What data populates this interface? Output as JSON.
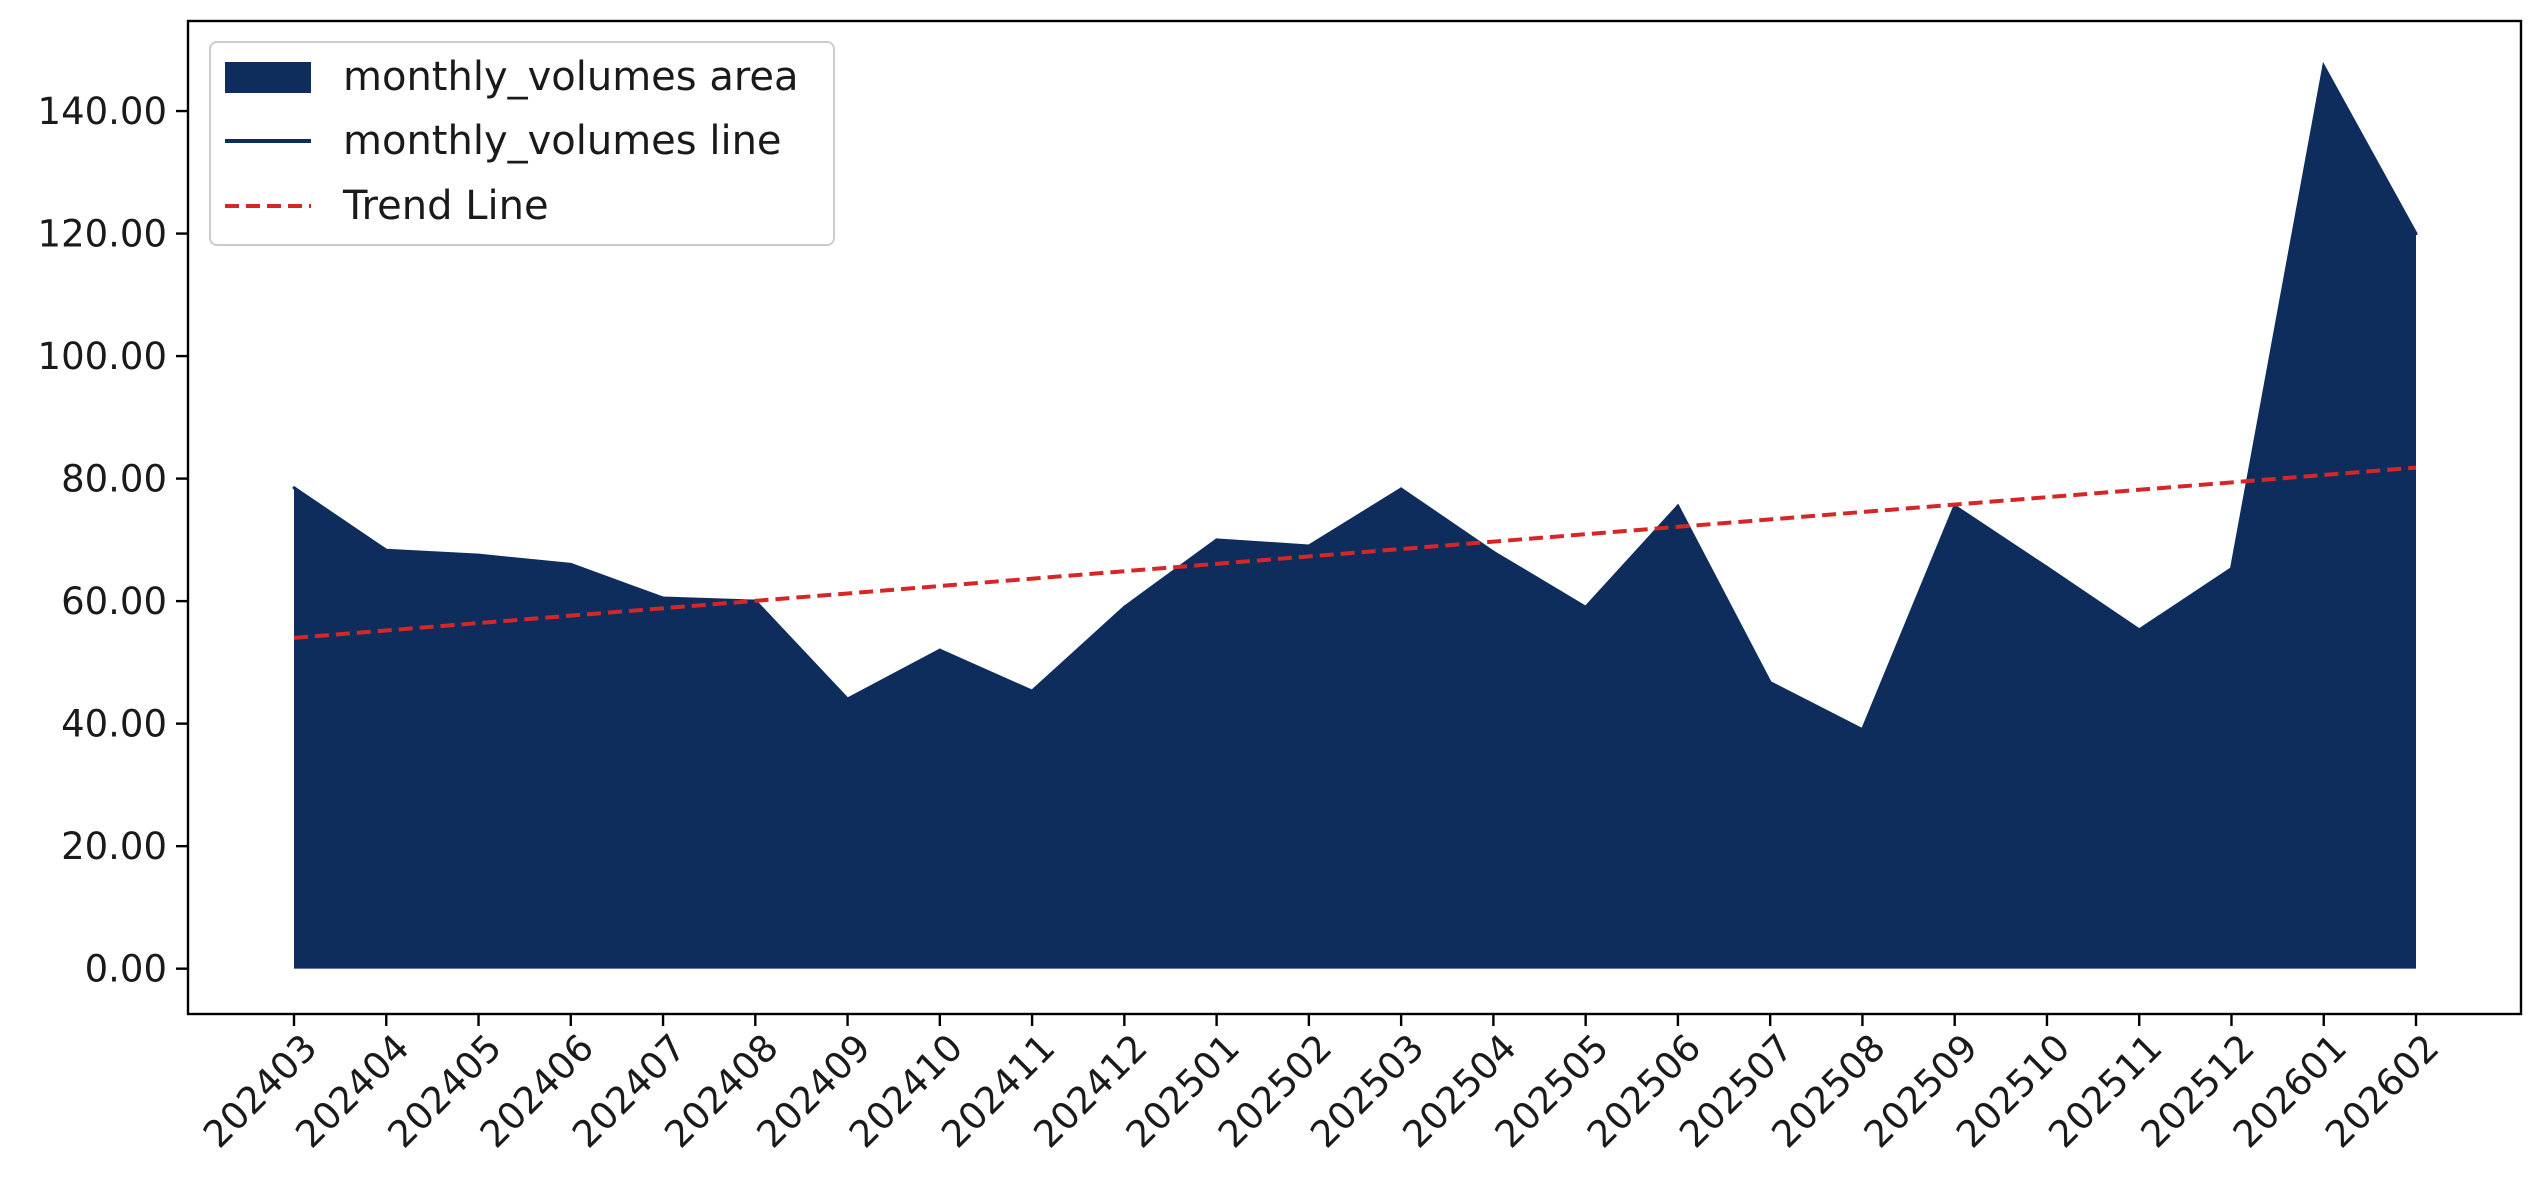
{
  "chart_data": {
    "type": "area",
    "title": "",
    "xlabel": "",
    "ylabel": "",
    "categories": [
      "202403",
      "202404",
      "202405",
      "202406",
      "202407",
      "202408",
      "202409",
      "202410",
      "202411",
      "202412",
      "202501",
      "202502",
      "202503",
      "202504",
      "202505",
      "202506",
      "202507",
      "202508",
      "202509",
      "202510",
      "202511",
      "202512",
      "202601",
      "202602"
    ],
    "series": [
      {
        "name": "monthly_volumes area",
        "kind": "area",
        "color": "#0f2d5c",
        "values": [
          78.5,
          68.3,
          67.5,
          66.0,
          60.5,
          60.0,
          44.0,
          52.0,
          45.3,
          59.0,
          70.0,
          69.0,
          78.3,
          68.0,
          59.0,
          75.5,
          46.7,
          39.0,
          75.5,
          65.5,
          55.3,
          65.3,
          147.3,
          120.0
        ]
      },
      {
        "name": "monthly_volumes line",
        "kind": "line",
        "color": "#0f2d5c",
        "values": [
          78.5,
          68.3,
          67.5,
          66.0,
          60.5,
          60.0,
          44.0,
          52.0,
          45.3,
          59.0,
          70.0,
          69.0,
          78.3,
          68.0,
          59.0,
          75.5,
          46.7,
          39.0,
          75.5,
          65.5,
          55.3,
          65.3,
          147.3,
          120.0
        ]
      },
      {
        "name": "Trend Line",
        "kind": "trend",
        "color": "#d62728",
        "style": "dashed",
        "start": 54.0,
        "end": 81.8
      }
    ],
    "y_ticks": [
      "0.00",
      "20.00",
      "40.00",
      "60.00",
      "80.00",
      "100.00",
      "120.00",
      "140.00"
    ],
    "ylim": [
      -7.4,
      154.7
    ],
    "grid": false,
    "legend_position": "top-left"
  }
}
